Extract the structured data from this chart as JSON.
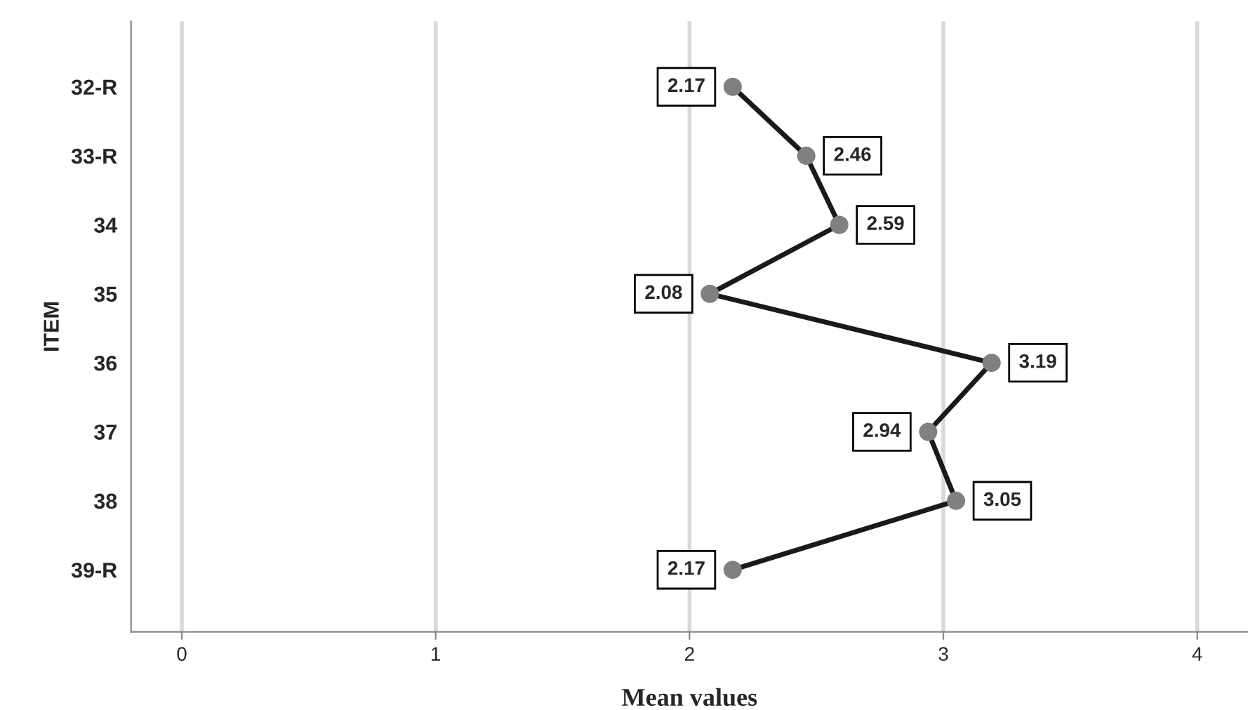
{
  "chart_data": {
    "type": "line",
    "orientation": "horizontal",
    "xlabel": "Mean values",
    "ylabel": "ITEM",
    "categories": [
      "32-R",
      "33-R",
      "34",
      "35",
      "36",
      "37",
      "38",
      "39-R"
    ],
    "series": [
      {
        "color": "#1a1a1a",
        "values": [
          2.17,
          2.46,
          2.59,
          2.08,
          3.19,
          2.94,
          3.05,
          2.17
        ]
      }
    ],
    "xlim": [
      -0.2,
      4.2
    ],
    "xticks": [
      0,
      1,
      2,
      3,
      4
    ],
    "grid": "x",
    "marker": "circle",
    "line_style": "solid",
    "data_labels": true
  }
}
